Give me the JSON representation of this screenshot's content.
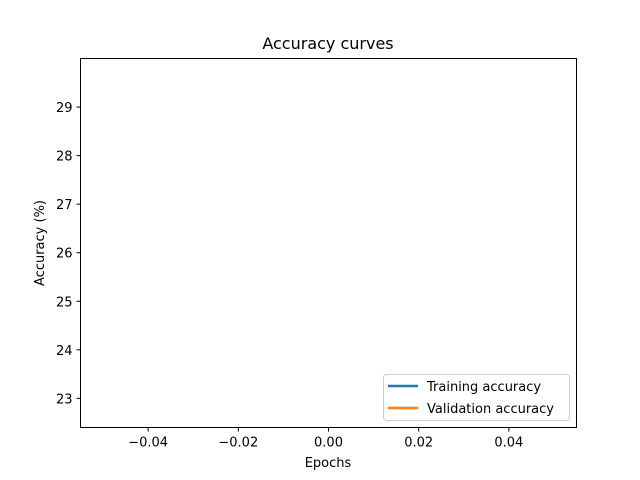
{
  "chart_data": {
    "type": "line",
    "title": "Accuracy curves",
    "xlabel": "Epochs",
    "ylabel": "Accuracy (%)",
    "xlim": [
      -0.055,
      0.055
    ],
    "ylim": [
      22.4,
      30.0
    ],
    "xticks": [
      -0.04,
      -0.02,
      0.0,
      0.02,
      0.04
    ],
    "xtick_labels": [
      "−0.04",
      "−0.02",
      "0.00",
      "0.02",
      "0.04"
    ],
    "yticks": [
      23,
      24,
      25,
      26,
      27,
      28,
      29
    ],
    "ytick_labels": [
      "23",
      "24",
      "25",
      "26",
      "27",
      "28",
      "29"
    ],
    "grid": false,
    "legend_position": "lower-right",
    "series": [
      {
        "name": "Training accuracy",
        "color": "#1f77b4",
        "x": [],
        "y": []
      },
      {
        "name": "Validation accuracy",
        "color": "#ff7f0e",
        "x": [],
        "y": []
      }
    ]
  }
}
